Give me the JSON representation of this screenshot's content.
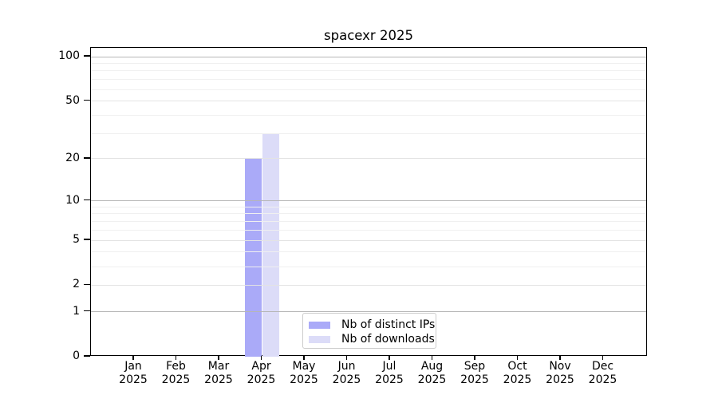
{
  "title": "spacexr 2025",
  "chart_data": {
    "type": "bar",
    "title": "spacexr 2025",
    "categories": [
      "Jan 2025",
      "Feb 2025",
      "Mar 2025",
      "Apr 2025",
      "May 2025",
      "Jun 2025",
      "Jul 2025",
      "Aug 2025",
      "Sep 2025",
      "Oct 2025",
      "Nov 2025",
      "Dec 2025"
    ],
    "series": [
      {
        "name": "Nb of distinct IPs",
        "color": "#aaaaf8",
        "values": [
          0,
          0,
          0,
          20,
          0,
          0,
          0,
          0,
          0,
          0,
          0,
          0
        ]
      },
      {
        "name": "Nb of downloads",
        "color": "#dcdcf8",
        "values": [
          0,
          0,
          0,
          30,
          0,
          0,
          0,
          0,
          0,
          0,
          0,
          0
        ]
      }
    ],
    "xlabel": "",
    "ylabel": "",
    "y_scale": "log10(1+x)",
    "y_ticks": [
      0,
      1,
      2,
      5,
      10,
      20,
      50,
      100
    ],
    "y_minor_gridlines": [
      3,
      4,
      6,
      7,
      8,
      9,
      30,
      40,
      60,
      70,
      80,
      90
    ],
    "ylim": [
      0,
      115
    ],
    "grid": "horizontal",
    "legend_position": "inside-bottom-center"
  },
  "legend": {
    "items": [
      {
        "label": "Nb of distinct IPs",
        "swatch": "#aaaaf8"
      },
      {
        "label": "Nb of downloads",
        "swatch": "#dcdcf8"
      }
    ]
  },
  "colors": {
    "bar_distinct_ips": "#aaaaf8",
    "bar_downloads": "#dcdcf8",
    "grid_power_of_ten": "#b6b6b6",
    "grid_labeled": "#e3e3e3",
    "grid_minor": "#f0f0f0",
    "axis": "#000000",
    "legend_border": "#cccccc",
    "background": "#ffffff"
  }
}
